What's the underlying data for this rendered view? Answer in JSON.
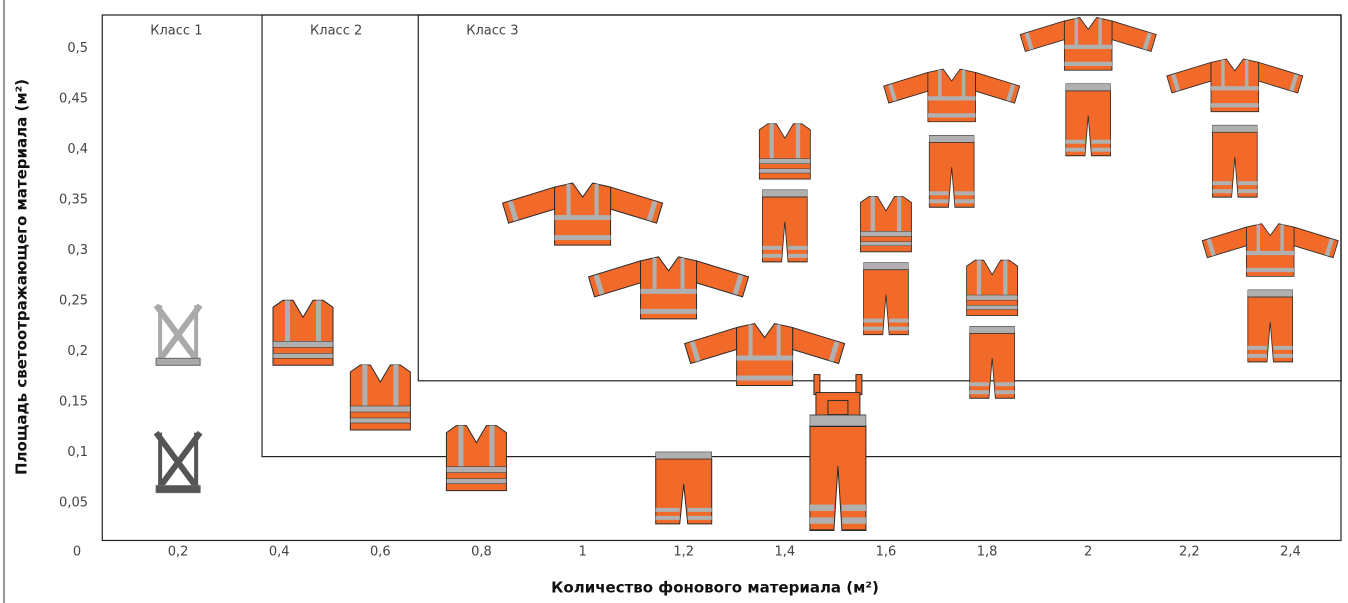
{
  "chart_data": {
    "type": "scatter",
    "x_label": "Количество фонового материала (м²)",
    "y_label": "Площадь светоотражающего материала (м²)",
    "xlim": [
      0,
      2.5
    ],
    "ylim": [
      0,
      0.533
    ],
    "xticks": [
      0,
      {
        "value": 0.2,
        "label": "0,2"
      },
      {
        "value": 0.4,
        "label": "0,4"
      },
      {
        "value": 0.6,
        "label": "0,6"
      },
      {
        "value": 0.8,
        "label": "0,8"
      },
      1,
      {
        "value": 1.2,
        "label": "1,2"
      },
      {
        "value": 1.4,
        "label": "1,4"
      },
      {
        "value": 1.6,
        "label": "1,6"
      },
      {
        "value": 1.8,
        "label": "1,8"
      },
      2,
      {
        "value": 2.2,
        "label": "2,2"
      },
      {
        "value": 2.4,
        "label": "2,4"
      }
    ],
    "yticks": [
      {
        "value": 0.05,
        "label": "0,05"
      },
      {
        "value": 0.1,
        "label": "0,1"
      },
      {
        "value": 0.15,
        "label": "0,15"
      },
      {
        "value": 0.2,
        "label": "0,2"
      },
      {
        "value": 0.25,
        "label": "0,25"
      },
      {
        "value": 0.3,
        "label": "0,3"
      },
      {
        "value": 0.35,
        "label": "0,35"
      },
      {
        "value": 0.4,
        "label": "0,4"
      },
      {
        "value": 0.45,
        "label": "0,45"
      },
      {
        "value": 0.5,
        "label": "0,5"
      }
    ],
    "classes": [
      {
        "label": "Класс 1",
        "xmin": 0.05,
        "ymin": 0.013
      },
      {
        "label": "Класс 2",
        "xmin": 0.366,
        "ymin": 0.096
      },
      {
        "label": "Класс 3",
        "xmin": 0.675,
        "ymin": 0.171
      }
    ],
    "points": [
      {
        "marker": "harness",
        "color": "#aaaaaa",
        "x": 0.2,
        "y": 0.218
      },
      {
        "marker": "harness",
        "color": "#555555",
        "x": 0.2,
        "y": 0.092
      },
      {
        "marker": "vest",
        "color": "#f26a2a",
        "x": 0.447,
        "y": 0.218
      },
      {
        "marker": "vest",
        "color": "#f26a2a",
        "x": 0.6,
        "y": 0.154
      },
      {
        "marker": "vest",
        "color": "#f26a2a",
        "x": 0.79,
        "y": 0.094
      },
      {
        "marker": "jacket",
        "color": "#f26a2a",
        "x": 1.0,
        "y": 0.335
      },
      {
        "marker": "jacket",
        "color": "#f26a2a",
        "x": 1.17,
        "y": 0.262
      },
      {
        "marker": "jacket",
        "color": "#f26a2a",
        "x": 1.36,
        "y": 0.196
      },
      {
        "marker": "pants",
        "color": "#f26a2a",
        "x": 1.2,
        "y": 0.065
      },
      {
        "marker": "overalls",
        "color": "#f26a2a",
        "x": 1.505,
        "y": 0.098
      },
      {
        "marker": "vest-pants",
        "color": "#f26a2a",
        "x": 1.4,
        "y": 0.36
      },
      {
        "marker": "vest-pants",
        "color": "#f26a2a",
        "x": 1.6,
        "y": 0.288
      },
      {
        "marker": "vest-pants",
        "color": "#f26a2a",
        "x": 1.81,
        "y": 0.225
      },
      {
        "marker": "jacket-pants",
        "color": "#f26a2a",
        "x": 1.73,
        "y": 0.413
      },
      {
        "marker": "jacket-pants",
        "color": "#f26a2a",
        "x": 2.0,
        "y": 0.464
      },
      {
        "marker": "jacket-pants",
        "color": "#f26a2a",
        "x": 2.29,
        "y": 0.423
      },
      {
        "marker": "jacket-pants",
        "color": "#f26a2a",
        "x": 2.36,
        "y": 0.26
      }
    ]
  }
}
